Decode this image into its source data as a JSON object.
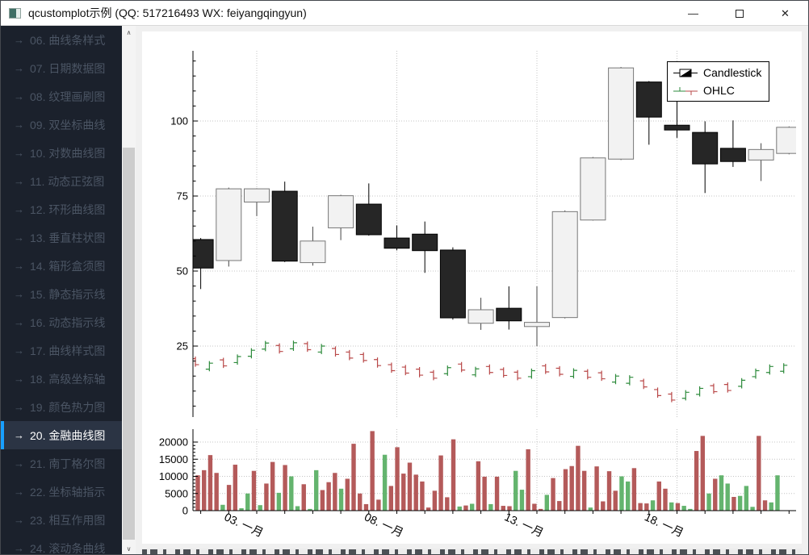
{
  "window": {
    "title": "qcustomplot示例 (QQ: 517216493 WX: feiyangqingyun)",
    "controls": {
      "minimize": "—",
      "maximize": "",
      "close": "✕"
    }
  },
  "sidebar": {
    "arrow_glyph": "→",
    "items": [
      {
        "label": "06. 曲线条样式",
        "selected": false
      },
      {
        "label": "07. 日期数据图",
        "selected": false
      },
      {
        "label": "08. 纹理画刷图",
        "selected": false
      },
      {
        "label": "09. 双坐标曲线",
        "selected": false
      },
      {
        "label": "10. 对数曲线图",
        "selected": false
      },
      {
        "label": "11. 动态正弦图",
        "selected": false
      },
      {
        "label": "12. 环形曲线图",
        "selected": false
      },
      {
        "label": "13. 垂直柱状图",
        "selected": false
      },
      {
        "label": "14. 箱形盒须图",
        "selected": false
      },
      {
        "label": "15. 静态指示线",
        "selected": false
      },
      {
        "label": "16. 动态指示线",
        "selected": false
      },
      {
        "label": "17. 曲线样式图",
        "selected": false
      },
      {
        "label": "18. 高级坐标轴",
        "selected": false
      },
      {
        "label": "19. 颜色热力图",
        "selected": false
      },
      {
        "label": "20. 金融曲线图",
        "selected": true
      },
      {
        "label": "21. 南丁格尔图",
        "selected": false
      },
      {
        "label": "22. 坐标轴指示",
        "selected": false
      },
      {
        "label": "23. 相互作用图",
        "selected": false
      },
      {
        "label": "24. 滚动条曲线",
        "selected": false
      }
    ]
  },
  "legend": {
    "items": [
      {
        "label": "Candlestick"
      },
      {
        "label": "OHLC"
      }
    ]
  },
  "chart_data": {
    "type": "candlestick",
    "title": "",
    "layout": {
      "grid": "dotted",
      "legend_position": "top-right",
      "panels": [
        "price",
        "volume"
      ]
    },
    "price_axis": {
      "ticks": [
        25,
        50,
        75,
        100
      ],
      "range": [
        1,
        124
      ],
      "subtick_step": 5
    },
    "volume_axis": {
      "ticks": [
        0,
        5000,
        10000,
        15000,
        20000
      ],
      "range": [
        0,
        23500
      ]
    },
    "x_axis": {
      "tick_days": [
        3,
        8,
        13,
        18
      ],
      "tick_labels": [
        "03. 一月",
        "08. 一月",
        "13. 一月",
        "18. 一月"
      ],
      "day_range": [
        0.3,
        22.3
      ],
      "label_rotation_deg": 25
    },
    "candlesticks": [
      {
        "d": 1,
        "o": 60.5,
        "h": 61.0,
        "l": 44.0,
        "c": 51.0,
        "dir": "down"
      },
      {
        "d": 2,
        "o": 53.5,
        "h": 77.8,
        "l": 51.5,
        "c": 77.4,
        "dir": "up"
      },
      {
        "d": 3,
        "o": 73.0,
        "h": 77.6,
        "l": 68.3,
        "c": 77.4,
        "dir": "up"
      },
      {
        "d": 4,
        "o": 76.6,
        "h": 79.8,
        "l": 53.0,
        "c": 53.3,
        "dir": "down"
      },
      {
        "d": 5,
        "o": 52.8,
        "h": 64.8,
        "l": 51.8,
        "c": 60.0,
        "dir": "up"
      },
      {
        "d": 6,
        "o": 64.4,
        "h": 75.4,
        "l": 60.3,
        "c": 75.1,
        "dir": "up"
      },
      {
        "d": 7,
        "o": 72.3,
        "h": 79.2,
        "l": 61.8,
        "c": 62.1,
        "dir": "down"
      },
      {
        "d": 8,
        "o": 61.0,
        "h": 65.2,
        "l": 56.9,
        "c": 57.6,
        "dir": "down"
      },
      {
        "d": 9,
        "o": 62.3,
        "h": 66.5,
        "l": 49.4,
        "c": 56.8,
        "dir": "down"
      },
      {
        "d": 10,
        "o": 57.0,
        "h": 57.9,
        "l": 33.8,
        "c": 34.4,
        "dir": "down"
      },
      {
        "d": 11,
        "o": 32.6,
        "h": 41.1,
        "l": 30.4,
        "c": 37.1,
        "dir": "up"
      },
      {
        "d": 12,
        "o": 37.6,
        "h": 44.9,
        "l": 30.5,
        "c": 33.4,
        "dir": "down"
      },
      {
        "d": 13,
        "o": 31.5,
        "h": 44.9,
        "l": 25.0,
        "c": 32.9,
        "dir": "up"
      },
      {
        "d": 14,
        "o": 34.5,
        "h": 70.2,
        "l": 34.2,
        "c": 69.8,
        "dir": "up"
      },
      {
        "d": 15,
        "o": 67.0,
        "h": 88.0,
        "l": 66.8,
        "c": 87.7,
        "dir": "up"
      },
      {
        "d": 16,
        "o": 87.3,
        "h": 118.0,
        "l": 87.0,
        "c": 117.7,
        "dir": "up"
      },
      {
        "d": 17,
        "o": 113.0,
        "h": 113.3,
        "l": 92.1,
        "c": 101.3,
        "dir": "down"
      },
      {
        "d": 18,
        "o": 98.6,
        "h": 109.8,
        "l": 94.4,
        "c": 97.0,
        "dir": "down"
      },
      {
        "d": 19,
        "o": 96.2,
        "h": 99.9,
        "l": 76.0,
        "c": 85.7,
        "dir": "down"
      },
      {
        "d": 20,
        "o": 90.9,
        "h": 100.2,
        "l": 84.7,
        "c": 86.5,
        "dir": "down"
      },
      {
        "d": 21,
        "o": 87.0,
        "h": 92.6,
        "l": 80.0,
        "c": 90.5,
        "dir": "up"
      },
      {
        "d": 22,
        "o": 89.2,
        "h": 98.2,
        "l": 88.9,
        "c": 97.9,
        "dir": "up"
      }
    ],
    "ohlc_halfday": [
      [
        19.8,
        "d"
      ],
      [
        18.3,
        "u"
      ],
      [
        19.4,
        "d"
      ],
      [
        20.5,
        "u"
      ],
      [
        22.6,
        "u"
      ],
      [
        25.0,
        "u"
      ],
      [
        24.2,
        "d"
      ],
      [
        25.1,
        "u"
      ],
      [
        24.8,
        "d"
      ],
      [
        24.0,
        "u"
      ],
      [
        23.2,
        "d"
      ],
      [
        22.0,
        "d"
      ],
      [
        21.2,
        "d"
      ],
      [
        19.5,
        "d"
      ],
      [
        17.8,
        "d"
      ],
      [
        17.0,
        "d"
      ],
      [
        16.3,
        "d"
      ],
      [
        15.3,
        "d"
      ],
      [
        16.8,
        "u"
      ],
      [
        18.0,
        "d"
      ],
      [
        16.4,
        "u"
      ],
      [
        17.2,
        "d"
      ],
      [
        16.2,
        "d"
      ],
      [
        15.3,
        "d"
      ],
      [
        15.8,
        "u"
      ],
      [
        17.4,
        "d"
      ],
      [
        16.6,
        "d"
      ],
      [
        15.9,
        "u"
      ],
      [
        15.6,
        "d"
      ],
      [
        15.1,
        "d"
      ],
      [
        14.0,
        "u"
      ],
      [
        13.6,
        "u"
      ],
      [
        12.4,
        "d"
      ],
      [
        9.5,
        "d"
      ],
      [
        8.0,
        "d"
      ],
      [
        8.6,
        "u"
      ],
      [
        9.9,
        "u"
      ],
      [
        10.8,
        "d"
      ],
      [
        11.2,
        "d"
      ],
      [
        12.6,
        "u"
      ],
      [
        15.8,
        "u"
      ],
      [
        17.2,
        "u"
      ],
      [
        17.6,
        "u"
      ]
    ],
    "volume_5h": [
      [
        10300,
        "n"
      ],
      [
        11800,
        "n"
      ],
      [
        16200,
        "n"
      ],
      [
        11000,
        "n"
      ],
      [
        1700,
        "p"
      ],
      [
        7500,
        "n"
      ],
      [
        13400,
        "n"
      ],
      [
        700,
        "p"
      ],
      [
        5000,
        "p"
      ],
      [
        11600,
        "n"
      ],
      [
        1600,
        "p"
      ],
      [
        7900,
        "n"
      ],
      [
        14200,
        "n"
      ],
      [
        5200,
        "p"
      ],
      [
        13300,
        "n"
      ],
      [
        10000,
        "p"
      ],
      [
        1300,
        "p"
      ],
      [
        7700,
        "n"
      ],
      [
        500,
        "p"
      ],
      [
        11800,
        "p"
      ],
      [
        6000,
        "n"
      ],
      [
        8300,
        "n"
      ],
      [
        11000,
        "n"
      ],
      [
        6400,
        "p"
      ],
      [
        9300,
        "n"
      ],
      [
        19500,
        "n"
      ],
      [
        5000,
        "n"
      ],
      [
        1900,
        "n"
      ],
      [
        23200,
        "n"
      ],
      [
        3200,
        "n"
      ],
      [
        16300,
        "p"
      ],
      [
        7200,
        "n"
      ],
      [
        18500,
        "n"
      ],
      [
        10800,
        "n"
      ],
      [
        14000,
        "n"
      ],
      [
        10500,
        "n"
      ],
      [
        8500,
        "n"
      ],
      [
        900,
        "n"
      ],
      [
        5800,
        "n"
      ],
      [
        16100,
        "n"
      ],
      [
        3900,
        "n"
      ],
      [
        20800,
        "n"
      ],
      [
        1200,
        "p"
      ],
      [
        1500,
        "n"
      ],
      [
        2000,
        "p"
      ],
      [
        14400,
        "n"
      ],
      [
        9900,
        "n"
      ],
      [
        1900,
        "p"
      ],
      [
        9900,
        "n"
      ],
      [
        1400,
        "n"
      ],
      [
        1300,
        "n"
      ],
      [
        11600,
        "p"
      ],
      [
        6100,
        "p"
      ],
      [
        17900,
        "n"
      ],
      [
        2000,
        "n"
      ],
      [
        500,
        "n"
      ],
      [
        4600,
        "p"
      ],
      [
        9500,
        "n"
      ],
      [
        2800,
        "n"
      ],
      [
        12100,
        "n"
      ],
      [
        13000,
        "n"
      ],
      [
        18900,
        "n"
      ],
      [
        11600,
        "n"
      ],
      [
        900,
        "p"
      ],
      [
        12900,
        "n"
      ],
      [
        2700,
        "n"
      ],
      [
        11500,
        "n"
      ],
      [
        5800,
        "n"
      ],
      [
        10000,
        "p"
      ],
      [
        8500,
        "p"
      ],
      [
        12400,
        "n"
      ],
      [
        2200,
        "n"
      ],
      [
        2100,
        "n"
      ],
      [
        3000,
        "p"
      ],
      [
        8500,
        "n"
      ],
      [
        6400,
        "n"
      ],
      [
        2400,
        "p"
      ],
      [
        2200,
        "n"
      ],
      [
        1400,
        "p"
      ],
      [
        500,
        "p"
      ],
      [
        17400,
        "n"
      ],
      [
        21800,
        "n"
      ],
      [
        5000,
        "p"
      ],
      [
        9300,
        "n"
      ],
      [
        10300,
        "p"
      ],
      [
        7900,
        "p"
      ],
      [
        4000,
        "n"
      ],
      [
        4300,
        "p"
      ],
      [
        7200,
        "p"
      ],
      [
        1100,
        "p"
      ],
      [
        21800,
        "n"
      ],
      [
        3000,
        "n"
      ],
      [
        2400,
        "p"
      ],
      [
        10300,
        "p"
      ]
    ],
    "colors": {
      "candle_up_fill": "#f2f2f2",
      "candle_up_stroke": "#777777",
      "candle_down_fill": "#262626",
      "candle_down_stroke": "#000000",
      "ohlc_up": "#2e8b3c",
      "ohlc_down": "#b94848",
      "volume_pos": "#64b46e",
      "volume_neg": "#b45a5a",
      "grid": "#c4c4c4",
      "axis": "#000000",
      "sidebar_accent": "#189fff"
    }
  }
}
